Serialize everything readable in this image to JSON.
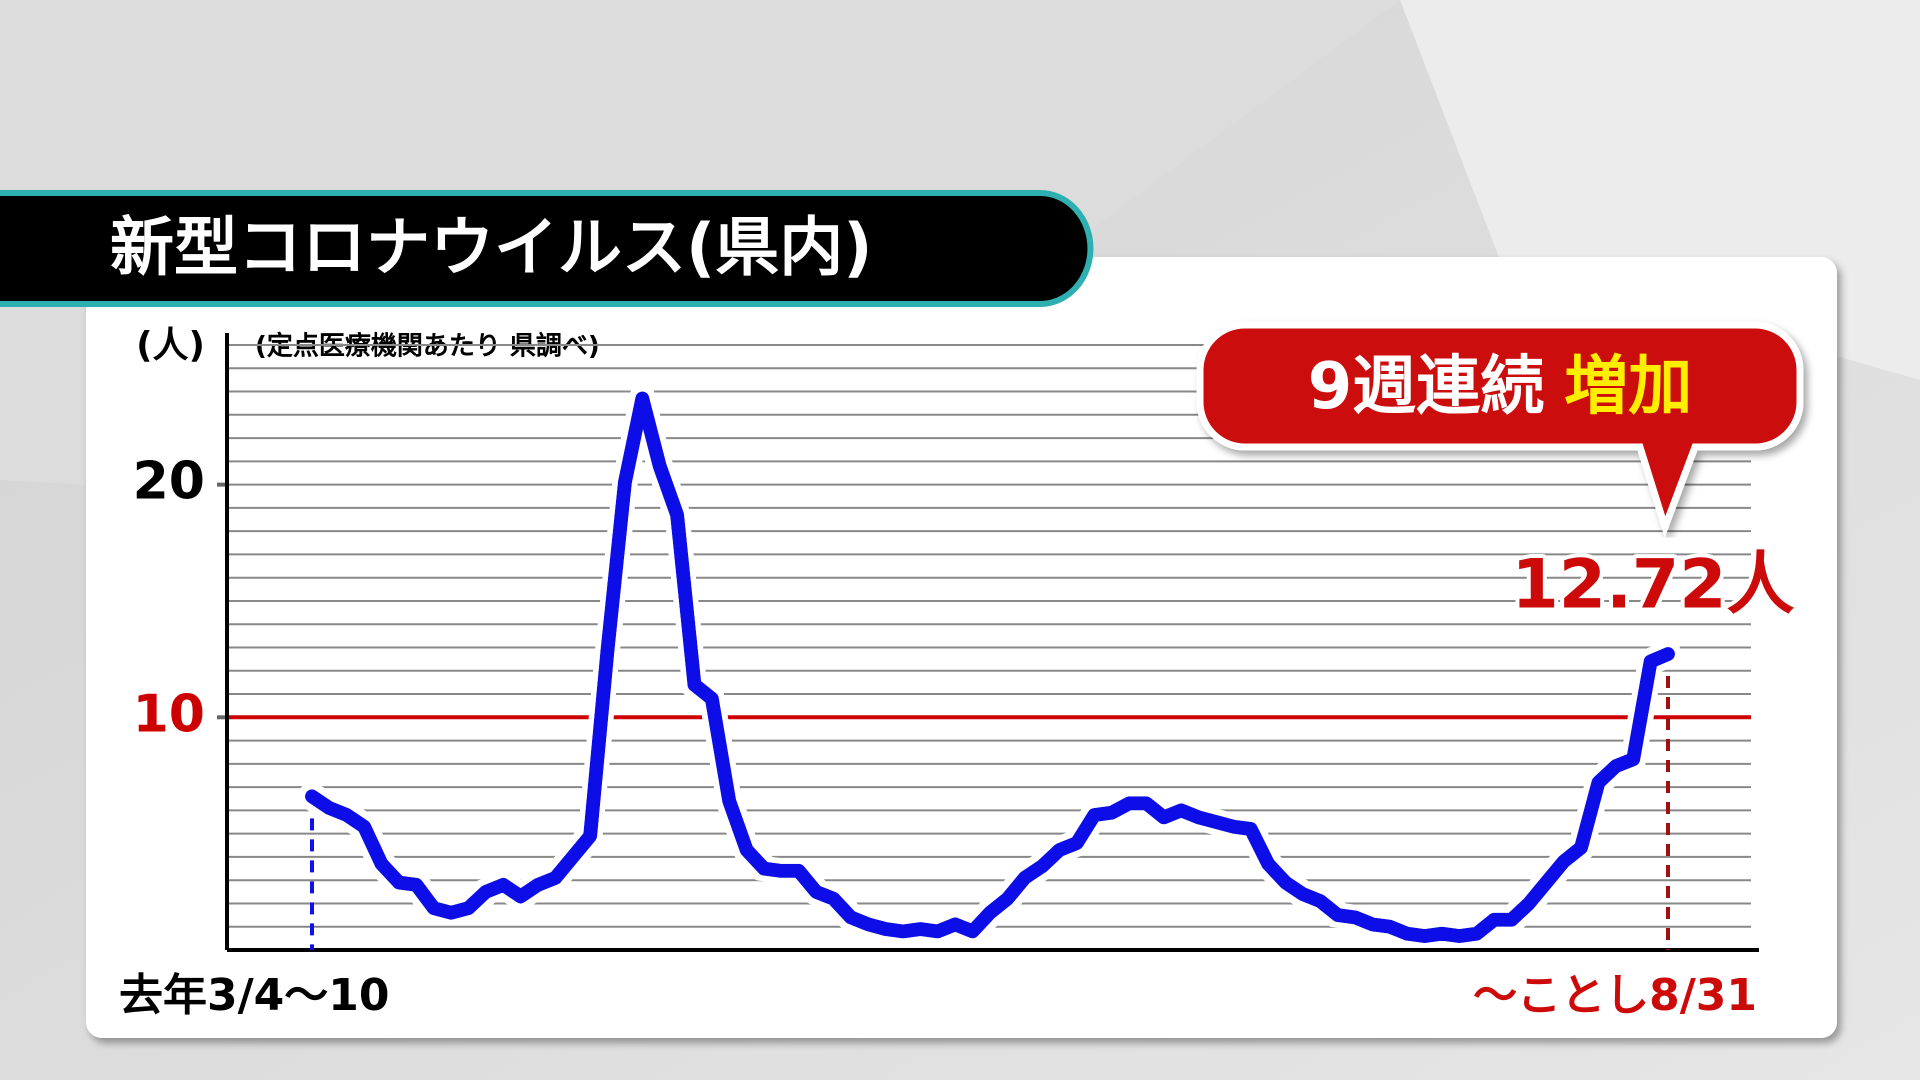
{
  "chart_data": {
    "type": "line",
    "title": "新型コロナウイルス(県内)",
    "y_label": "(人)",
    "note": "(定点医療機関あたり 県調べ)",
    "callout": {
      "text": "9週連続",
      "highlight": "増加"
    },
    "categories": [
      "去年3/4〜10",
      null,
      null,
      null,
      null,
      null,
      null,
      null,
      null,
      null,
      null,
      null,
      null,
      null,
      null,
      null,
      null,
      null,
      null,
      null,
      null,
      null,
      null,
      null,
      null,
      null,
      null,
      null,
      null,
      null,
      null,
      null,
      null,
      null,
      null,
      null,
      null,
      null,
      null,
      null,
      null,
      null,
      null,
      null,
      null,
      null,
      null,
      null,
      null,
      null,
      null,
      null,
      null,
      null,
      null,
      null,
      null,
      null,
      null,
      null,
      null,
      null,
      null,
      null,
      null,
      null,
      null,
      null,
      null,
      null,
      null,
      null,
      null,
      null,
      null,
      null,
      null,
      null,
      "〜ことし8/31"
    ],
    "series": [
      {
        "name": "定点医療機関あたり",
        "color": "#1010e8",
        "values": [
          6.6,
          6.1,
          5.8,
          5.3,
          3.7,
          2.9,
          2.8,
          1.8,
          1.6,
          1.8,
          2.5,
          2.8,
          2.3,
          2.8,
          3.1,
          4.0,
          4.9,
          12.9,
          20.1,
          23.7,
          20.8,
          18.7,
          11.4,
          10.8,
          6.4,
          4.3,
          3.5,
          3.4,
          3.4,
          2.5,
          2.2,
          1.4,
          1.1,
          0.9,
          0.8,
          0.9,
          0.8,
          1.1,
          0.8,
          1.6,
          2.2,
          3.1,
          3.6,
          4.3,
          4.6,
          5.8,
          5.9,
          6.3,
          6.3,
          5.7,
          6.0,
          5.7,
          5.5,
          5.3,
          5.2,
          3.7,
          2.9,
          2.4,
          2.1,
          1.5,
          1.4,
          1.1,
          1.0,
          0.7,
          0.6,
          0.7,
          0.6,
          0.7,
          1.3,
          1.3,
          2.0,
          2.9,
          3.8,
          4.4,
          7.2,
          7.9,
          8.2,
          12.4,
          12.72
        ],
        "value_labels": [
          null,
          null,
          null,
          null,
          null,
          null,
          null,
          null,
          null,
          null,
          null,
          null,
          null,
          null,
          null,
          null,
          null,
          null,
          null,
          null,
          null,
          null,
          null,
          null,
          null,
          null,
          null,
          null,
          null,
          null,
          null,
          null,
          null,
          null,
          null,
          null,
          null,
          null,
          null,
          null,
          null,
          null,
          null,
          null,
          null,
          null,
          null,
          null,
          null,
          null,
          null,
          null,
          null,
          null,
          null,
          null,
          null,
          null,
          null,
          null,
          null,
          null,
          null,
          null,
          null,
          null,
          null,
          null,
          null,
          null,
          null,
          null,
          null,
          null,
          null,
          null,
          null,
          null,
          "12.72人"
        ]
      }
    ],
    "ylim": [
      0,
      26
    ],
    "yticks": [
      10,
      20
    ],
    "grid": true,
    "grid_step": 1,
    "threshold": {
      "value": 10,
      "color": "#cc0000"
    },
    "tick_colors": [
      "#cc0000",
      "#000000"
    ],
    "start_marker_color": "#1010e8",
    "end_marker_color": "#a01010"
  }
}
